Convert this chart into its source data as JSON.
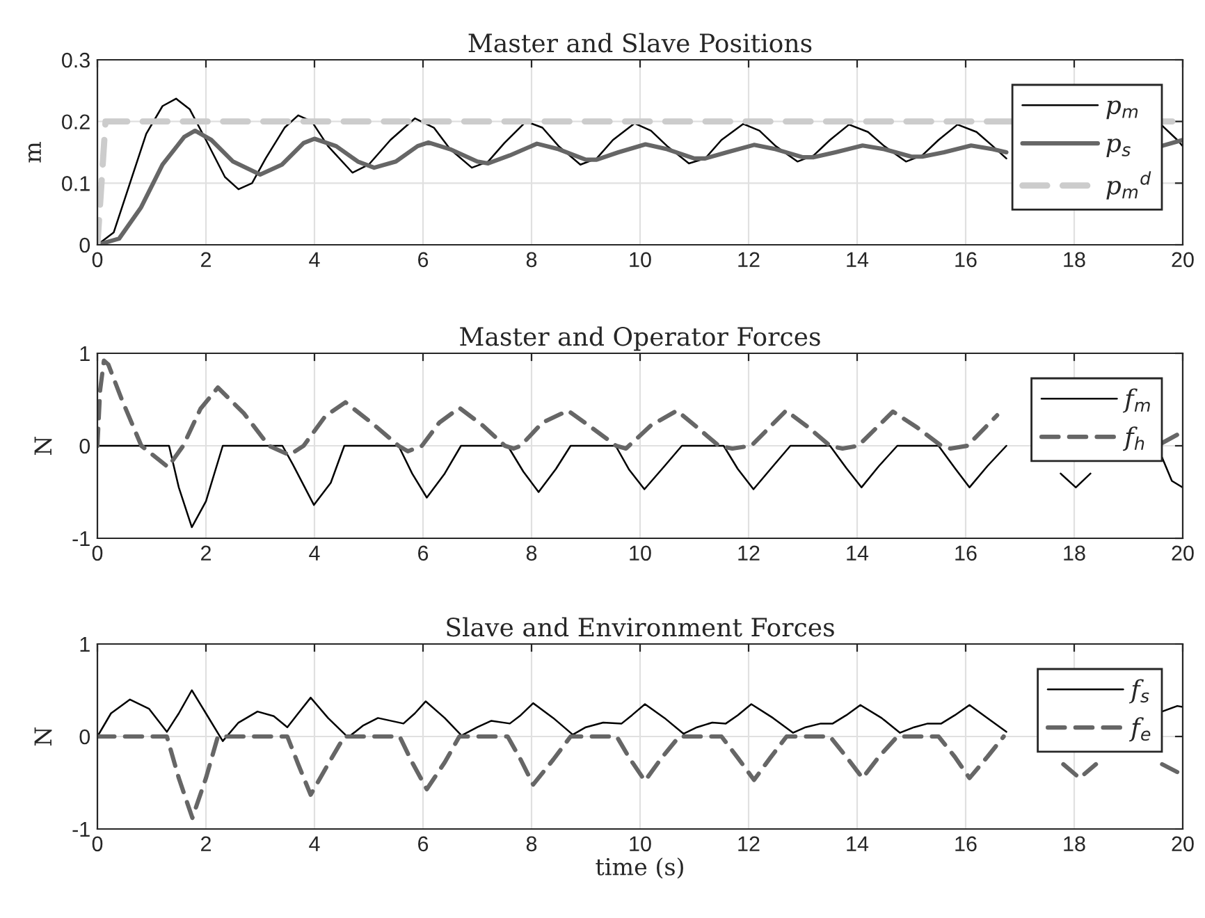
{
  "chart_data": [
    {
      "type": "line",
      "title": "Master and Slave Positions",
      "ylabel": "m",
      "xlim": [
        0,
        20
      ],
      "xticks": [
        0,
        2,
        4,
        6,
        8,
        10,
        12,
        14,
        16,
        18,
        20
      ],
      "ylim": [
        0,
        0.3
      ],
      "yticks": [
        0,
        0.1,
        0.2,
        0.3
      ],
      "grid": true,
      "legend": "right",
      "series": [
        {
          "name": "p$_{m}$",
          "color": "#000000",
          "line_style": "solid",
          "x": [
            0,
            0.3,
            0.6,
            0.9,
            1.2,
            1.45,
            1.7,
            2.0,
            2.35,
            2.6,
            2.85,
            3.1,
            3.45,
            3.7,
            3.95,
            4.25,
            4.7,
            5.0,
            5.4,
            5.85,
            6.2,
            6.5,
            6.9,
            7.2,
            7.5,
            7.9,
            8.2,
            8.5,
            8.9,
            9.2,
            9.5,
            9.9,
            10.2,
            10.5,
            10.9,
            11.2,
            11.5,
            11.9,
            12.2,
            12.5,
            12.9,
            13.2,
            13.5,
            13.85,
            14.2,
            14.5,
            14.9,
            15.2,
            15.5,
            15.85,
            16.2,
            16.5,
            16.75,
            17.5,
            19.0,
            19.6,
            19.9,
            20
          ],
          "values": [
            0,
            0.02,
            0.1,
            0.18,
            0.225,
            0.237,
            0.22,
            0.17,
            0.11,
            0.09,
            0.1,
            0.14,
            0.19,
            0.21,
            0.2,
            0.16,
            0.117,
            0.13,
            0.17,
            0.205,
            0.19,
            0.155,
            0.125,
            0.135,
            0.165,
            0.2,
            0.19,
            0.16,
            0.13,
            0.14,
            0.17,
            0.197,
            0.185,
            0.16,
            0.132,
            0.14,
            0.17,
            0.196,
            0.185,
            0.16,
            0.135,
            0.145,
            0.17,
            0.195,
            0.183,
            0.16,
            0.135,
            0.145,
            0.17,
            0.195,
            0.183,
            0.16,
            0.14,
            null,
            null,
            0.195,
            0.17,
            0.16
          ]
        },
        {
          "name": "p$_{s}$",
          "color": "#666666",
          "line_style": "solid",
          "x": [
            0,
            0.4,
            0.8,
            1.2,
            1.6,
            1.8,
            2.1,
            2.5,
            3.0,
            3.4,
            3.8,
            4.0,
            4.4,
            4.8,
            5.1,
            5.5,
            5.9,
            6.1,
            6.5,
            7.0,
            7.2,
            7.6,
            8.1,
            8.5,
            9.0,
            9.2,
            9.6,
            10.1,
            10.5,
            11.0,
            11.2,
            11.6,
            12.1,
            12.5,
            13.0,
            13.2,
            13.6,
            14.1,
            14.5,
            15.0,
            15.2,
            15.6,
            16.1,
            16.5,
            16.75,
            17.5,
            19.0,
            19.6,
            20
          ],
          "values": [
            0,
            0.01,
            0.06,
            0.13,
            0.175,
            0.185,
            0.17,
            0.135,
            0.114,
            0.13,
            0.165,
            0.172,
            0.16,
            0.135,
            0.125,
            0.135,
            0.16,
            0.166,
            0.155,
            0.135,
            0.132,
            0.145,
            0.164,
            0.155,
            0.138,
            0.138,
            0.15,
            0.163,
            0.155,
            0.14,
            0.14,
            0.15,
            0.162,
            0.155,
            0.142,
            0.142,
            0.15,
            0.161,
            0.155,
            0.143,
            0.143,
            0.15,
            0.161,
            0.155,
            0.15,
            null,
            null,
            0.16,
            0.17
          ]
        },
        {
          "name": "p$_{m}$$^{d}$",
          "color": "#cccccc",
          "line_style": "dashed",
          "x": [
            0,
            0.15,
            20
          ],
          "values": [
            0,
            0.2,
            0.2
          ]
        }
      ]
    },
    {
      "type": "line",
      "title": "Master and Operator Forces",
      "ylabel": "N",
      "xlim": [
        0,
        20
      ],
      "xticks": [
        0,
        2,
        4,
        6,
        8,
        10,
        12,
        14,
        16,
        18,
        20
      ],
      "ylim": [
        -1,
        1
      ],
      "yticks": [
        -1,
        0,
        1
      ],
      "grid": true,
      "legend": "right",
      "series": [
        {
          "name": "f$_{m}$",
          "color": "#000000",
          "line_style": "solid",
          "x": [
            0,
            1.32,
            1.5,
            1.74,
            2.0,
            2.31,
            3.41,
            3.6,
            3.99,
            4.3,
            4.55,
            5.55,
            5.8,
            6.07,
            6.4,
            6.7,
            7.56,
            7.85,
            8.13,
            8.45,
            8.72,
            9.55,
            9.8,
            10.08,
            10.45,
            10.77,
            11.54,
            11.8,
            12.09,
            12.45,
            12.77,
            13.5,
            13.8,
            14.08,
            14.4,
            14.74,
            15.5,
            15.8,
            16.07,
            16.4,
            16.75,
            17.2,
            17.75,
            18.03,
            18.3,
            19.0,
            19.6,
            19.8,
            20
          ],
          "values": [
            0,
            0,
            -0.45,
            -0.88,
            -0.6,
            0,
            0,
            -0.2,
            -0.64,
            -0.4,
            0,
            0,
            -0.3,
            -0.56,
            -0.3,
            0,
            0,
            -0.28,
            -0.5,
            -0.25,
            0,
            0,
            -0.26,
            -0.47,
            -0.22,
            0,
            0,
            -0.25,
            -0.47,
            -0.22,
            0,
            0,
            -0.24,
            -0.45,
            -0.22,
            0,
            0,
            -0.24,
            -0.45,
            -0.22,
            0,
            null,
            -0.3,
            -0.45,
            -0.3,
            null,
            -0.1,
            -0.38,
            -0.45
          ]
        },
        {
          "name": "f$_{h}$",
          "color": "#666666",
          "line_style": "dashed",
          "x": [
            0,
            0.05,
            0.12,
            0.2,
            0.45,
            0.81,
            1.3,
            1.58,
            1.9,
            2.22,
            2.7,
            3.16,
            3.54,
            3.8,
            4.2,
            4.57,
            5.05,
            5.55,
            5.72,
            5.98,
            6.3,
            6.67,
            7.1,
            7.51,
            7.67,
            7.8,
            8.2,
            8.67,
            9.1,
            9.56,
            9.74,
            10.2,
            10.68,
            11.05,
            11.45,
            11.7,
            12.05,
            12.69,
            13.1,
            13.5,
            13.73,
            14.02,
            14.66,
            15.1,
            15.55,
            15.72,
            16.03,
            16.58,
            17.5,
            19.0,
            19.62,
            19.9,
            20
          ],
          "values": [
            0,
            0.6,
            0.92,
            0.88,
            0.5,
            0,
            -0.23,
            0,
            0.4,
            0.63,
            0.35,
            0,
            -0.1,
            0,
            0.32,
            0.47,
            0.25,
            0,
            -0.06,
            0,
            0.25,
            0.41,
            0.22,
            0,
            -0.03,
            0,
            0.25,
            0.38,
            0.2,
            0,
            -0.03,
            0.22,
            0.38,
            0.2,
            0,
            -0.03,
            0,
            0.38,
            0.2,
            0,
            -0.03,
            0,
            0.37,
            0.2,
            0,
            -0.03,
            0,
            0.33,
            null,
            null,
            0.03,
            0.12,
            0.15
          ]
        }
      ]
    },
    {
      "type": "line",
      "title": "Slave and Environment Forces",
      "xlabel": "time (s)",
      "ylabel": "N",
      "xlim": [
        0,
        20
      ],
      "xticks": [
        0,
        2,
        4,
        6,
        8,
        10,
        12,
        14,
        16,
        18,
        20
      ],
      "ylim": [
        -1,
        1
      ],
      "yticks": [
        -1,
        0,
        1
      ],
      "grid": true,
      "legend": "right",
      "series": [
        {
          "name": "f$_{s}$",
          "color": "#000000",
          "line_style": "solid",
          "x": [
            0,
            0.25,
            0.6,
            0.95,
            1.28,
            1.5,
            1.74,
            2.0,
            2.31,
            2.6,
            2.95,
            3.25,
            3.5,
            3.7,
            3.93,
            4.25,
            4.62,
            4.9,
            5.17,
            5.64,
            5.85,
            6.05,
            6.4,
            6.71,
            7.0,
            7.26,
            7.6,
            7.8,
            8.03,
            8.4,
            8.76,
            9.0,
            9.32,
            9.66,
            9.85,
            10.09,
            10.45,
            10.8,
            11.05,
            11.33,
            11.58,
            11.8,
            12.05,
            12.45,
            12.82,
            13.05,
            13.33,
            13.55,
            13.8,
            14.06,
            14.45,
            14.79,
            15.05,
            15.3,
            15.55,
            15.8,
            16.07,
            16.4,
            16.75,
            17.2,
            19.0,
            19.62,
            19.9,
            20
          ],
          "values": [
            0,
            0.25,
            0.4,
            0.3,
            0.05,
            0.25,
            0.5,
            0.25,
            -0.05,
            0.15,
            0.27,
            0.22,
            0.1,
            0.25,
            0.42,
            0.2,
            -0.01,
            0.12,
            0.2,
            0.14,
            0.25,
            0.38,
            0.2,
            0.01,
            0.1,
            0.17,
            0.14,
            0.23,
            0.36,
            0.2,
            0.02,
            0.1,
            0.15,
            0.14,
            0.23,
            0.35,
            0.2,
            0.03,
            0.1,
            0.15,
            0.14,
            0.23,
            0.35,
            0.2,
            0.04,
            0.1,
            0.14,
            0.14,
            0.23,
            0.34,
            0.2,
            0.04,
            0.1,
            0.14,
            0.14,
            0.23,
            0.34,
            0.2,
            0.05,
            null,
            null,
            0.27,
            0.33,
            0.32
          ]
        },
        {
          "name": "f$_{e}$",
          "color": "#666666",
          "line_style": "dashed",
          "x": [
            0,
            1.28,
            1.5,
            1.75,
            2.0,
            2.22,
            3.5,
            3.7,
            3.93,
            4.25,
            4.55,
            5.57,
            5.8,
            6.07,
            6.4,
            6.67,
            7.56,
            7.8,
            8.03,
            8.4,
            8.72,
            9.57,
            9.8,
            10.09,
            10.4,
            10.72,
            11.5,
            11.8,
            12.1,
            12.4,
            12.7,
            13.5,
            13.8,
            14.1,
            14.4,
            14.74,
            15.5,
            15.8,
            16.07,
            16.4,
            16.7,
            17.2,
            17.8,
            18.1,
            18.4,
            19.0,
            19.62,
            19.95,
            20
          ],
          "values": [
            0,
            0,
            -0.45,
            -0.88,
            -0.45,
            0,
            0,
            -0.3,
            -0.63,
            -0.3,
            0,
            0,
            -0.28,
            -0.57,
            -0.28,
            0,
            0,
            -0.25,
            -0.52,
            -0.25,
            0,
            0,
            -0.23,
            -0.48,
            -0.23,
            0,
            0,
            -0.23,
            -0.47,
            -0.23,
            0,
            0,
            -0.22,
            -0.45,
            -0.22,
            0,
            0,
            -0.22,
            -0.45,
            -0.22,
            0,
            null,
            -0.3,
            -0.45,
            -0.3,
            null,
            -0.3,
            -0.4,
            -0.42
          ]
        }
      ]
    }
  ]
}
